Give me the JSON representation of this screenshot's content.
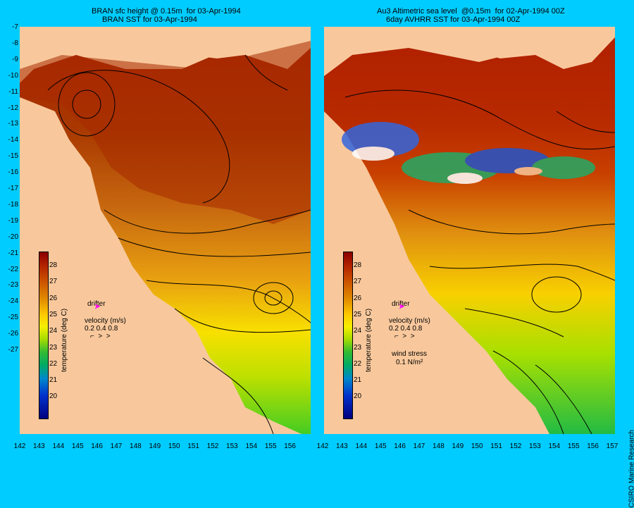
{
  "left_panel": {
    "title_line1": "BRAN sfc height @ 0.15m  for 03-Apr-1994",
    "title_line2": "BRAN SST for 03-Apr-1994",
    "colorbar_label": "temperature (deg C)",
    "drifter_label": "drifter",
    "velocity_label": "velocity (m/s)",
    "velocity_scale": "0.2 0.4 0.8"
  },
  "right_panel": {
    "title_line1": "Au3 Altimetric sea level  @0.15m  for 02-Apr-1994 00Z",
    "title_line2": "6day AVHRR SST for 03-Apr-1994 00Z",
    "colorbar_label": "temperature (deg C)",
    "drifter_label": "drifter",
    "velocity_label": "velocity (m/s)",
    "velocity_scale": "0.2 0.4 0.8",
    "wind_label": "wind stress",
    "wind_scale": "0.1 N/m²"
  },
  "y_axis_labels": [
    "-7",
    "-8",
    "-9",
    "-10",
    "-11",
    "-12",
    "-13",
    "-14",
    "-15",
    "-16",
    "-17",
    "-18",
    "-19",
    "-20",
    "-21",
    "-22",
    "-23",
    "-24",
    "-25",
    "-26",
    "-27"
  ],
  "x_axis_labels": [
    "142",
    "143",
    "144",
    "145",
    "146",
    "147",
    "148",
    "149",
    "150",
    "151",
    "152",
    "153",
    "154",
    "155",
    "156",
    "157"
  ],
  "colorbar_ticks": [
    "28",
    "27",
    "26",
    "25",
    "24",
    "23",
    "22",
    "21",
    "20"
  ],
  "credit": "CSIRO Marine Research",
  "colors": {
    "background": "#00ccff",
    "land": "#f8c89c",
    "warm": "#a82000",
    "cool": "#44cc22"
  }
}
